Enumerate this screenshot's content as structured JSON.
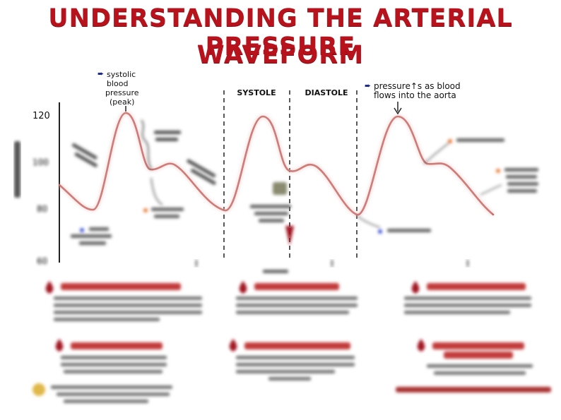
{
  "title": {
    "line1": "UNDERSTANDING THE ARTERIAL PRESSURE",
    "line2": "WAVEFORM"
  },
  "phases": {
    "systole": "SYSTOLE",
    "diastole": "DIASTOLE"
  },
  "annotations": {
    "peak_label": [
      "systolic",
      "blood",
      "pressure",
      "(peak)"
    ],
    "aorta_label": [
      "pressure↑s as blood",
      "flows into the aorta"
    ]
  },
  "y_axis": {
    "ticks": [
      "120",
      "100",
      "80",
      "60"
    ]
  },
  "colors": {
    "title": "#b8121c",
    "curve": "#c0504d",
    "accent_blue": "#1f2a8c"
  }
}
